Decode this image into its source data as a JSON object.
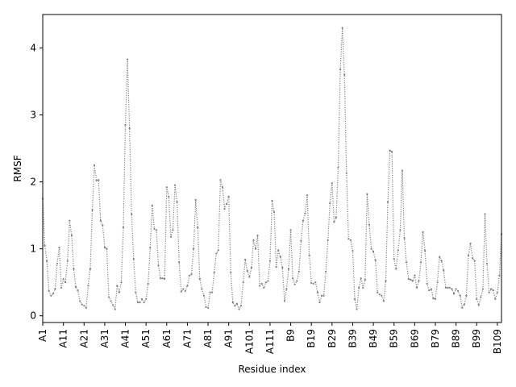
{
  "chart_data": {
    "type": "line",
    "title": "",
    "xlabel": "Residue index",
    "ylabel": "RMSF",
    "ylim": [
      -0.1,
      4.5
    ],
    "yticks": [
      0,
      1,
      2,
      3,
      4
    ],
    "grid": false,
    "line_color": "#808080",
    "line_style": "dotted",
    "marker": "point",
    "x_tick_labels": [
      "A1",
      "A11",
      "A21",
      "A31",
      "A41",
      "A51",
      "A61",
      "A71",
      "A81",
      "A91",
      "A101",
      "A111",
      "B9",
      "B19",
      "B29",
      "B39",
      "B49",
      "B59",
      "B69",
      "B79",
      "B89",
      "B99",
      "B109"
    ],
    "series": [
      {
        "values": [
          1.75,
          1.05,
          0.82,
          0.37,
          0.3,
          0.33,
          0.4,
          0.78,
          1.02,
          0.42,
          0.55,
          0.5,
          0.82,
          1.42,
          1.2,
          0.7,
          0.43,
          0.38,
          0.22,
          0.17,
          0.15,
          0.12,
          0.45,
          0.7,
          1.58,
          2.25,
          2.02,
          2.03,
          1.42,
          1.35,
          1.02,
          1.0,
          0.28,
          0.22,
          0.16,
          0.1,
          0.45,
          0.35,
          0.5,
          1.32,
          2.85,
          3.83,
          2.8,
          1.52,
          0.85,
          0.35,
          0.2,
          0.2,
          0.25,
          0.2,
          0.25,
          0.48,
          1.02,
          1.65,
          1.3,
          1.28,
          0.75,
          0.56,
          0.56,
          0.55,
          1.92,
          1.78,
          1.18,
          1.28,
          1.95,
          1.7,
          0.8,
          0.36,
          0.4,
          0.37,
          0.45,
          0.6,
          0.62,
          1.0,
          1.73,
          1.32,
          0.55,
          0.4,
          0.3,
          0.13,
          0.12,
          0.35,
          0.35,
          0.65,
          0.93,
          0.98,
          2.03,
          1.92,
          1.6,
          1.67,
          1.78,
          0.65,
          0.2,
          0.15,
          0.18,
          0.1,
          0.15,
          0.5,
          0.84,
          0.67,
          0.58,
          0.72,
          1.13,
          1.0,
          1.2,
          0.45,
          0.48,
          0.42,
          0.5,
          0.52,
          0.82,
          1.72,
          1.55,
          0.73,
          0.98,
          0.88,
          0.72,
          0.22,
          0.4,
          0.7,
          1.28,
          0.56,
          0.47,
          0.52,
          0.66,
          1.12,
          1.42,
          1.53,
          1.8,
          0.9,
          0.49,
          0.48,
          0.5,
          0.35,
          0.2,
          0.3,
          0.3,
          0.66,
          1.13,
          1.68,
          1.98,
          1.4,
          1.47,
          2.22,
          3.68,
          4.3,
          3.6,
          2.13,
          1.15,
          1.13,
          0.97,
          0.25,
          0.1,
          0.42,
          0.56,
          0.42,
          0.54,
          1.82,
          1.36,
          1.0,
          0.96,
          0.83,
          0.35,
          0.32,
          0.3,
          0.22,
          0.52,
          1.7,
          2.47,
          2.45,
          0.85,
          0.7,
          0.98,
          1.28,
          2.17,
          1.16,
          0.8,
          0.55,
          0.54,
          0.52,
          0.6,
          0.42,
          0.52,
          0.8,
          1.25,
          0.97,
          0.48,
          0.38,
          0.4,
          0.26,
          0.25,
          0.5,
          0.88,
          0.82,
          0.68,
          0.42,
          0.42,
          0.42,
          0.4,
          0.33,
          0.4,
          0.37,
          0.3,
          0.12,
          0.17,
          0.3,
          0.9,
          1.08,
          0.86,
          0.82,
          0.25,
          0.16,
          0.28,
          0.4,
          1.52,
          0.78,
          0.35,
          0.4,
          0.38,
          0.25,
          0.35,
          0.6,
          1.22
        ]
      }
    ]
  }
}
